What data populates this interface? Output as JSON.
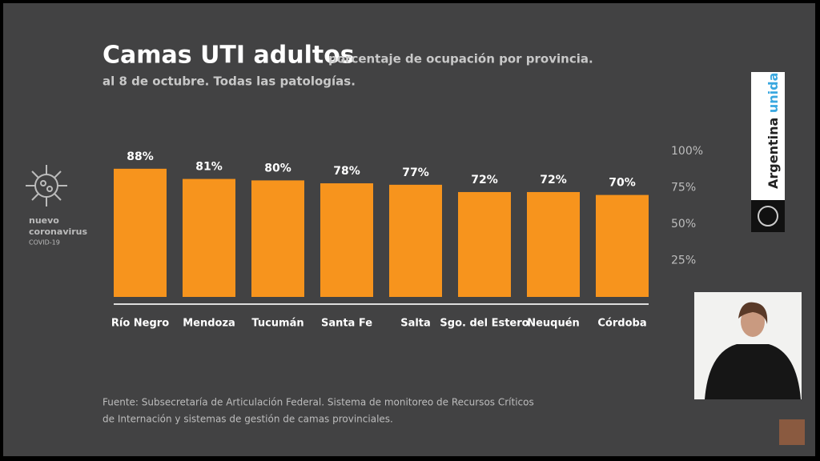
{
  "chart_data": {
    "type": "bar",
    "title": "Camas UTI adultos",
    "subtitle": "porcentaje de ocupación por provincia.",
    "subtitle2": "al 8 de octubre. Todas las patologías.",
    "categories": [
      "Río Negro",
      "Mendoza",
      "Tucumán",
      "Santa Fe",
      "Salta",
      "Sgo. del Estero",
      "Neuquén",
      "Córdoba"
    ],
    "values": [
      88,
      81,
      80,
      78,
      77,
      72,
      72,
      70
    ],
    "value_labels": [
      "88%",
      "81%",
      "80%",
      "78%",
      "77%",
      "72%",
      "72%",
      "70%"
    ],
    "color": "#f7941d",
    "ylim": [
      0,
      100
    ],
    "yticks": [
      {
        "value": 25,
        "label": "25%"
      },
      {
        "value": 50,
        "label": "50%"
      },
      {
        "value": 75,
        "label": "75%"
      },
      {
        "value": 100,
        "label": "100%"
      }
    ],
    "grid": false,
    "source": [
      "Fuente: Subsecretaría de Articulación Federal. Sistema de monitoreo de Recursos Críticos",
      "de Internación  y sistemas de gestión de camas provinciales."
    ]
  },
  "logo": {
    "line1": "nuevo",
    "line2": "coronavirus",
    "line3": "COVID-19"
  },
  "brand": {
    "word1": "Argentina",
    "word2": "unida"
  }
}
